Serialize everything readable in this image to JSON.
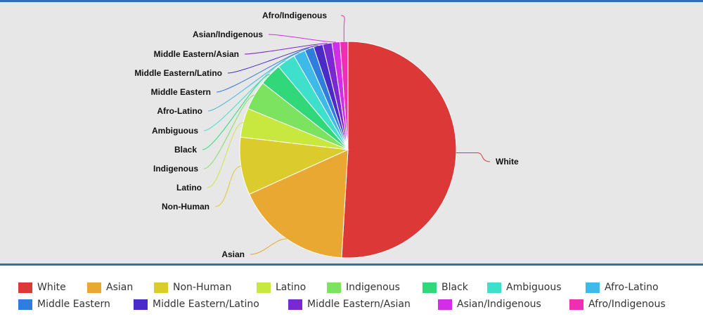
{
  "chart_data": {
    "type": "pie",
    "title": "",
    "legend_position": "bottom",
    "slices": [
      {
        "label": "White",
        "value": 51.5,
        "color": "#dc3838"
      },
      {
        "label": "Asian",
        "value": 17.5,
        "color": "#e8a832"
      },
      {
        "label": "Non-Human",
        "value": 8.7,
        "color": "#dbcb2c"
      },
      {
        "label": "Latino",
        "value": 4.4,
        "color": "#c9e83f"
      },
      {
        "label": "Indigenous",
        "value": 4.4,
        "color": "#7be360"
      },
      {
        "label": "Black",
        "value": 3.4,
        "color": "#31d87a"
      },
      {
        "label": "Ambiguous",
        "value": 2.8,
        "color": "#3ee0cc"
      },
      {
        "label": "Afro-Latino",
        "value": 1.8,
        "color": "#3eb9e8"
      },
      {
        "label": "Middle Eastern",
        "value": 1.4,
        "color": "#2f7ddc"
      },
      {
        "label": "Middle Eastern/Latino",
        "value": 1.4,
        "color": "#4a2bc8"
      },
      {
        "label": "Middle Eastern/Asian",
        "value": 1.4,
        "color": "#7a28d0"
      },
      {
        "label": "Asian/Indigenous",
        "value": 1.2,
        "color": "#d12fe6"
      },
      {
        "label": "Afro/Indigenous",
        "value": 1.2,
        "color": "#ee2fb4"
      }
    ]
  }
}
